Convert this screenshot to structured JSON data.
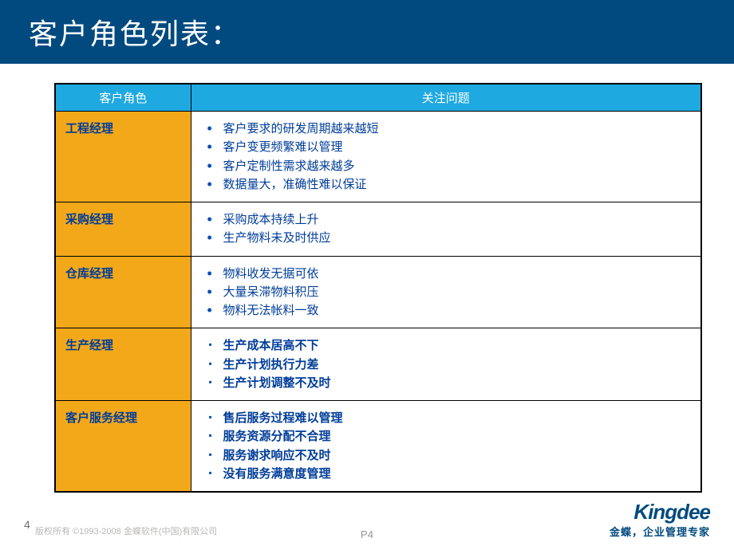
{
  "title": "客户角色列表：",
  "table": {
    "header_role": "客户角色",
    "header_issue": "关注问题",
    "header_bg": "#1fa9e1",
    "role_bg": "#f3a81a",
    "text_color": "#003d99",
    "rows": [
      {
        "role": "工程经理",
        "bullet_style": "disc",
        "bold": false,
        "issues": [
          "客户要求的研发周期越来越短",
          "客户变更频繁难以管理",
          "客户定制性需求越来越多",
          "数据量大，准确性难以保证"
        ]
      },
      {
        "role": "采购经理",
        "bullet_style": "disc",
        "bold": false,
        "issues": [
          "采购成本持续上升",
          "生产物料未及时供应"
        ]
      },
      {
        "role": "仓库经理",
        "bullet_style": "disc",
        "bold": false,
        "issues": [
          "物料收发无据可依",
          "大量呆滞物料积压",
          "物料无法帐料一致"
        ]
      },
      {
        "role": "生产经理",
        "bullet_style": "square",
        "bold": true,
        "issues": [
          "生产成本居高不下",
          "生产计划执行力差",
          "生产计划调整不及时"
        ]
      },
      {
        "role": "客户服务经理",
        "bullet_style": "square",
        "bold": true,
        "issues": [
          "售后服务过程难以管理",
          "服务资源分配不合理",
          "服务谢求响应不及时",
          "没有服务满意度管理"
        ]
      }
    ]
  },
  "footer": {
    "page_left": "4",
    "copyright": "版权所有 ©1993-2008 金蝶软件(中国)有限公司",
    "page_center": "P4",
    "brand_logo": "Kingdee",
    "brand_tagline": "金蝶，企业管理专家"
  },
  "colors": {
    "title_bar_bg": "#004a7f",
    "title_text": "#ffffff",
    "brand_color": "#004a7f"
  }
}
